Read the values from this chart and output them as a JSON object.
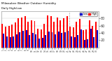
{
  "title": "Milwaukee Weather Outdoor Humidity",
  "subtitle": "Daily High/Low",
  "high_color": "#ff0000",
  "low_color": "#0000cc",
  "background_color": "#ffffff",
  "plot_bg": "#f8f8f8",
  "ylim": [
    0,
    100
  ],
  "categories": [
    "1",
    "2",
    "3",
    "4",
    "5",
    "6",
    "7",
    "8",
    "9",
    "10",
    "11",
    "12",
    "13",
    "14",
    "15",
    "16",
    "17",
    "18",
    "19",
    "20",
    "21",
    "22",
    "23",
    "24",
    "25",
    "26",
    "27",
    "28",
    "29",
    "30"
  ],
  "highs": [
    65,
    58,
    60,
    62,
    68,
    80,
    82,
    85,
    70,
    75,
    72,
    52,
    50,
    65,
    88,
    85,
    70,
    82,
    75,
    80,
    85,
    58,
    55,
    70,
    78,
    48,
    50,
    75,
    60,
    70
  ],
  "lows": [
    38,
    30,
    28,
    30,
    36,
    42,
    45,
    48,
    35,
    40,
    36,
    24,
    26,
    34,
    44,
    42,
    36,
    44,
    40,
    42,
    46,
    30,
    28,
    34,
    50,
    20,
    22,
    52,
    28,
    48
  ],
  "yticks": [
    20,
    40,
    60,
    80
  ],
  "grid_color": "#cccccc",
  "bar_width": 0.42,
  "legend_labels": [
    "High",
    "Low"
  ]
}
